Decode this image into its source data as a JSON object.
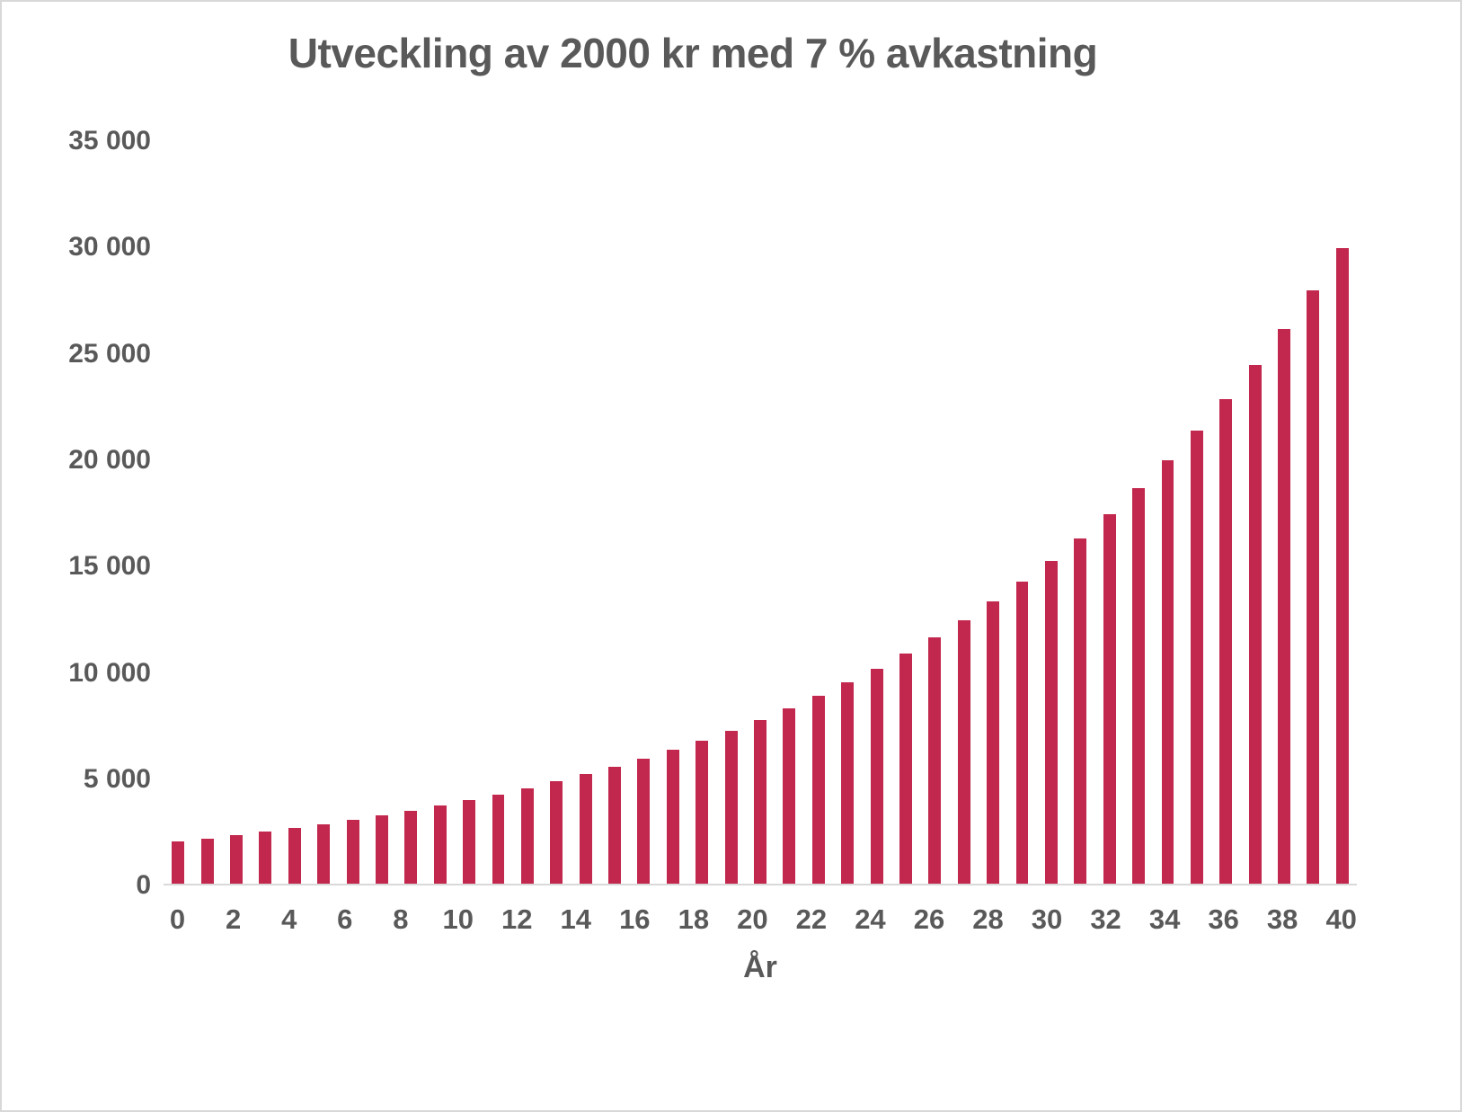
{
  "chart_data": {
    "type": "bar",
    "title": "Utveckling av 2000 kr med 7 % avkastning",
    "xlabel": "År",
    "ylabel": "",
    "ylim": [
      0,
      35000
    ],
    "y_ticks": [
      0,
      5000,
      10000,
      15000,
      20000,
      25000,
      30000,
      35000
    ],
    "y_tick_labels": [
      "0",
      "5 000",
      "10 000",
      "15 000",
      "20 000",
      "25 000",
      "30 000",
      "35 000"
    ],
    "x_tick_interval": 2,
    "categories": [
      0,
      1,
      2,
      3,
      4,
      5,
      6,
      7,
      8,
      9,
      10,
      11,
      12,
      13,
      14,
      15,
      16,
      17,
      18,
      19,
      20,
      21,
      22,
      23,
      24,
      25,
      26,
      27,
      28,
      29,
      30,
      31,
      32,
      33,
      34,
      35,
      36,
      37,
      38,
      39,
      40
    ],
    "values": [
      2000,
      2140,
      2290,
      2450,
      2622,
      2805,
      3001,
      3212,
      3436,
      3677,
      3934,
      4210,
      4504,
      4820,
      5157,
      5518,
      5904,
      6318,
      6760,
      7233,
      7739,
      8281,
      8861,
      9481,
      10145,
      10855,
      11615,
      12428,
      13298,
      14229,
      15225,
      16291,
      17431,
      18651,
      19957,
      21354,
      22849,
      24448,
      26159,
      27991,
      29950
    ],
    "bar_color": "#C2274D",
    "text_color": "#595959",
    "axis_line_color": "#d9d9d9",
    "grid": false,
    "legend": null
  }
}
